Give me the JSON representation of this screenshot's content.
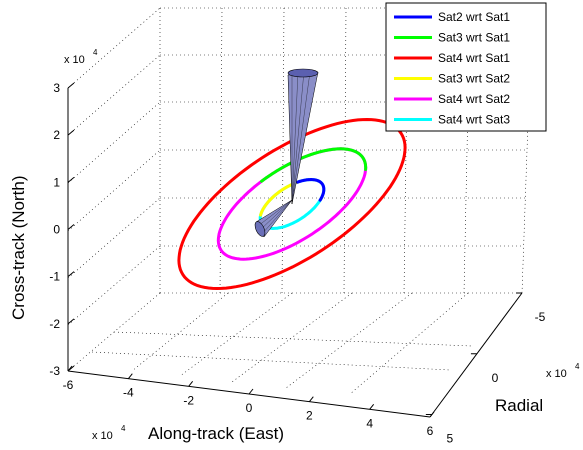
{
  "chart_data": {
    "type": "line",
    "subtype": "3d-orbit-plot",
    "title": "",
    "xlabel": "Along-track (East)",
    "ylabel": "Radial",
    "zlabel": "Cross-track (North)",
    "x_ticks": [
      "-6",
      "-4",
      "-2",
      "0",
      "2",
      "4",
      "6"
    ],
    "y_ticks": [
      "-5",
      "0",
      "5"
    ],
    "z_ticks": [
      "-3",
      "-2",
      "-1",
      "0",
      "1",
      "2",
      "3"
    ],
    "x_exponent": {
      "base": "x 10",
      "power": "4"
    },
    "y_exponent": {
      "base": "x 10",
      "power": "4"
    },
    "z_exponent": {
      "base": "x 10",
      "power": "4"
    },
    "xlim": [
      -60000,
      60000
    ],
    "ylim": [
      -50000,
      50000
    ],
    "zlim": [
      -30000,
      30000
    ],
    "grid": true,
    "legend_position": "top-right",
    "series": [
      {
        "name": "Sat2 wrt Sat1",
        "color": "#0000ff",
        "semi_major_along_track": 12000,
        "semi_minor_cross_track": 10000
      },
      {
        "name": "Sat3 wrt Sat1",
        "color": "#00ff00",
        "semi_major_along_track": 28000,
        "semi_minor_cross_track": 21000
      },
      {
        "name": "Sat4 wrt Sat1",
        "color": "#ff0000",
        "semi_major_along_track": 43000,
        "semi_minor_cross_track": 32000
      },
      {
        "name": "Sat3 wrt Sat2",
        "color": "#ffff00",
        "semi_major_along_track": 12000,
        "semi_minor_cross_track": 10000
      },
      {
        "name": "Sat4 wrt Sat2",
        "color": "#ff00ff",
        "semi_major_along_track": 28000,
        "semi_minor_cross_track": 21000
      },
      {
        "name": "Sat4 wrt Sat3",
        "color": "#00ffff",
        "semi_major_along_track": 12000,
        "semi_minor_cross_track": 10000
      }
    ]
  }
}
